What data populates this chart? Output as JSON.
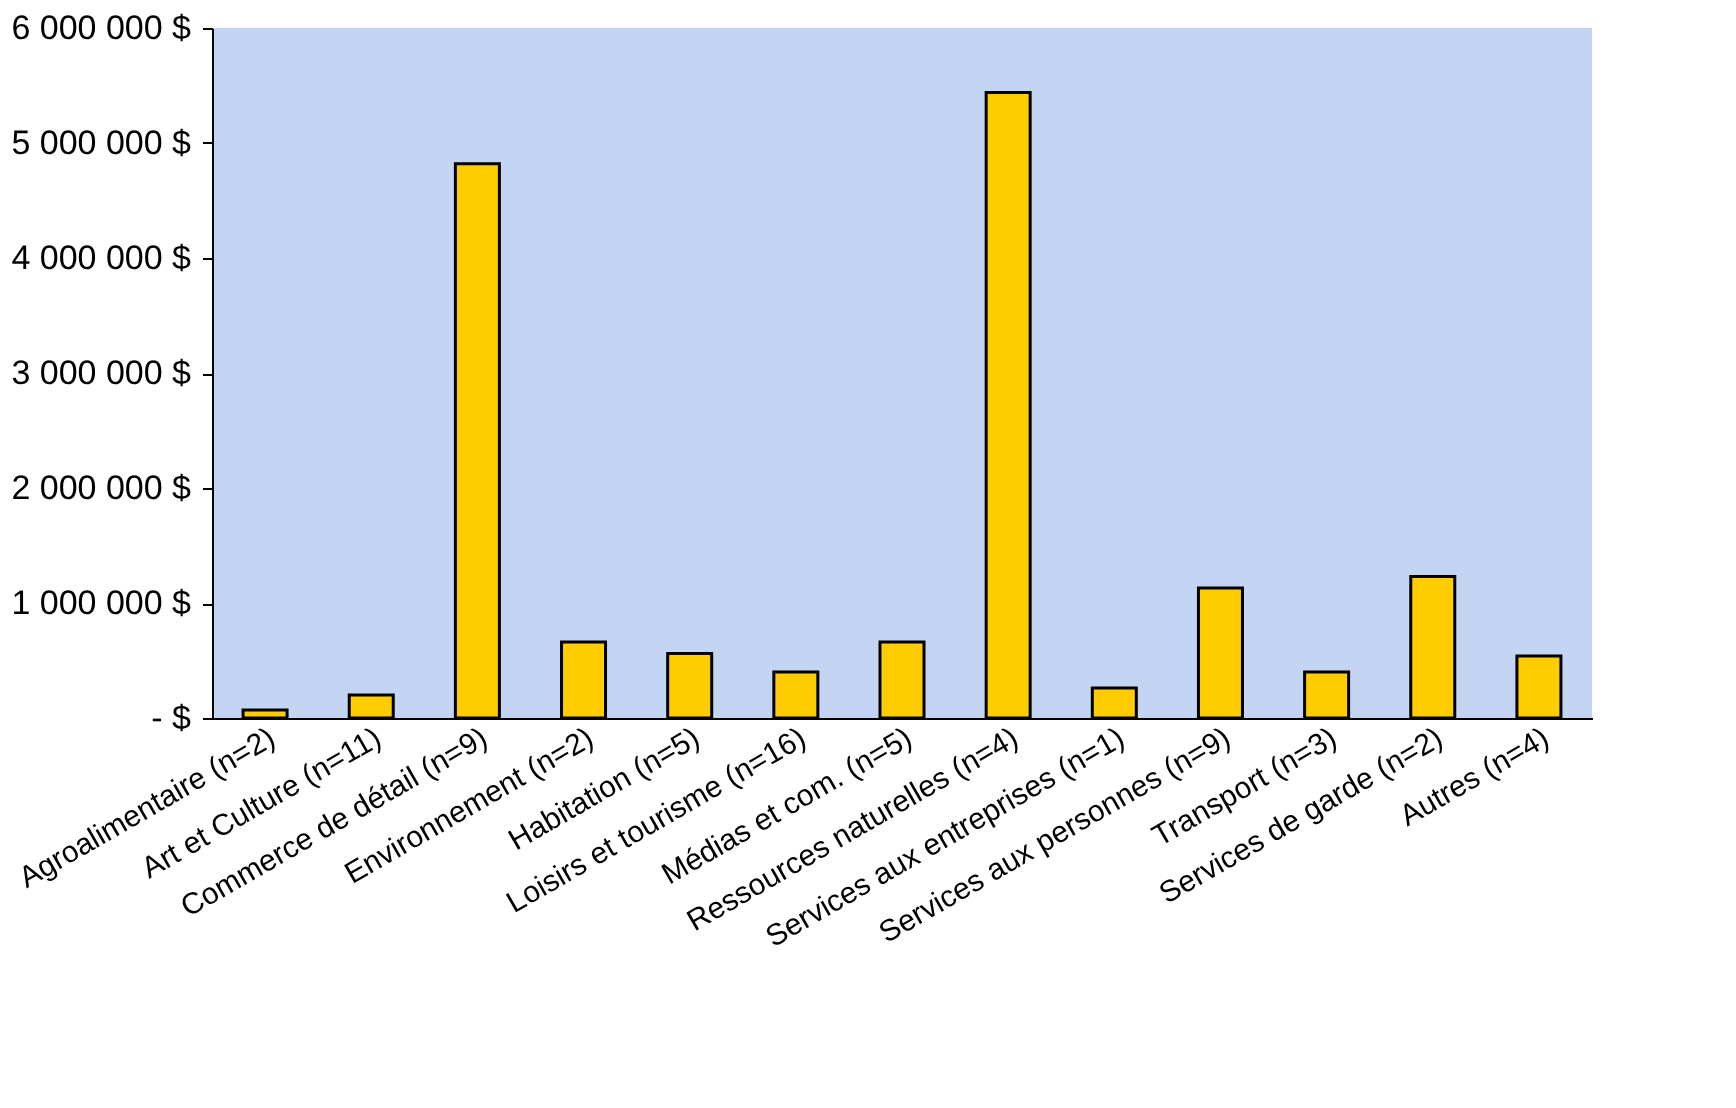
{
  "chart_data": {
    "type": "bar",
    "categories": [
      "Agroalimentaire (n=2)",
      "Art et Culture (n=11)",
      "Commerce de détail (n=9)",
      "Environnement (n=2)",
      "Habitation (n=5)",
      "Loisirs et tourisme (n=16)",
      "Médias et com. (n=5)",
      "Ressources naturelles (n=4)",
      "Services aux entreprises (n=1)",
      "Services aux personnes (n=9)",
      "Transport (n=3)",
      "Services de garde (n=2)",
      "Autres (n=4)"
    ],
    "values": [
      70000,
      200000,
      4820000,
      660000,
      560000,
      400000,
      660000,
      5440000,
      260000,
      1130000,
      400000,
      1230000,
      540000
    ],
    "color": "#ffcc00",
    "ylim": [
      0,
      6000000
    ],
    "yticks": [
      {
        "value": 0,
        "label": "- $"
      },
      {
        "value": 1000000,
        "label": "1 000 000 $"
      },
      {
        "value": 2000000,
        "label": "2 000 000 $"
      },
      {
        "value": 3000000,
        "label": "3 000 000 $"
      },
      {
        "value": 4000000,
        "label": "4 000 000 $"
      },
      {
        "value": 5000000,
        "label": "5 000 000 $"
      },
      {
        "value": 6000000,
        "label": "6 000 000 $"
      }
    ],
    "grid": false
  }
}
